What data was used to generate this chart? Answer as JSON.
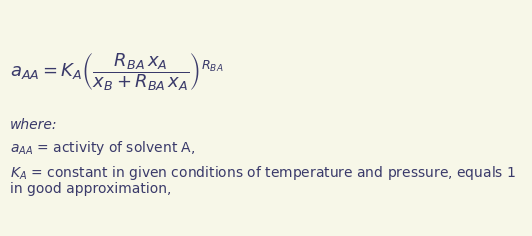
{
  "bg_color": "#f7f7e8",
  "text_color": "#3a3a6a",
  "formula_color": "#3a3a6a",
  "fig_width": 5.32,
  "fig_height": 2.36,
  "dpi": 100,
  "formula": "$a_{AA} = K_A\\left(\\dfrac{R_{BA}\\,x_A}{x_B + R_{BA}\\,x_A}\\right)^{R_{BA}}$",
  "where_text": "where:",
  "line2": "$a_{AA}$ = activity of solvent A,",
  "line3": "$K_A$ = constant in given conditions of temperature and pressure, equals 1",
  "line4": "in good approximation,"
}
